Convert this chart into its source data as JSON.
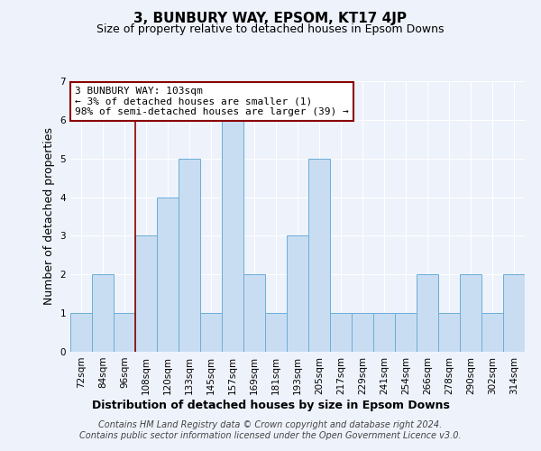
{
  "title": "3, BUNBURY WAY, EPSOM, KT17 4JP",
  "subtitle": "Size of property relative to detached houses in Epsom Downs",
  "xlabel": "Distribution of detached houses by size in Epsom Downs",
  "ylabel": "Number of detached properties",
  "footer_lines": [
    "Contains HM Land Registry data © Crown copyright and database right 2024.",
    "Contains public sector information licensed under the Open Government Licence v3.0."
  ],
  "bin_labels": [
    "72sqm",
    "84sqm",
    "96sqm",
    "108sqm",
    "120sqm",
    "133sqm",
    "145sqm",
    "157sqm",
    "169sqm",
    "181sqm",
    "193sqm",
    "205sqm",
    "217sqm",
    "229sqm",
    "241sqm",
    "254sqm",
    "266sqm",
    "278sqm",
    "290sqm",
    "302sqm",
    "314sqm"
  ],
  "bar_heights": [
    1,
    2,
    1,
    3,
    4,
    5,
    1,
    6,
    2,
    1,
    3,
    5,
    1,
    1,
    1,
    1,
    2,
    1,
    2,
    1,
    2
  ],
  "bar_color": "#c9ddf2",
  "bar_edge_color": "#6baed6",
  "ylim": [
    0,
    7
  ],
  "yticks": [
    0,
    1,
    2,
    3,
    4,
    5,
    6,
    7
  ],
  "vline_x_index": 2.5,
  "vline_color": "#8b0000",
  "annotation_text": "3 BUNBURY WAY: 103sqm\n← 3% of detached houses are smaller (1)\n98% of semi-detached houses are larger (39) →",
  "annotation_box_facecolor": "#ffffff",
  "annotation_box_edge": "#8b0000",
  "background_color": "#eef2fb",
  "grid_color": "#ffffff",
  "title_fontsize": 11,
  "subtitle_fontsize": 9,
  "ylabel_fontsize": 9,
  "xlabel_fontsize": 9,
  "tick_fontsize": 7.5,
  "annotation_fontsize": 8,
  "footer_fontsize": 7
}
